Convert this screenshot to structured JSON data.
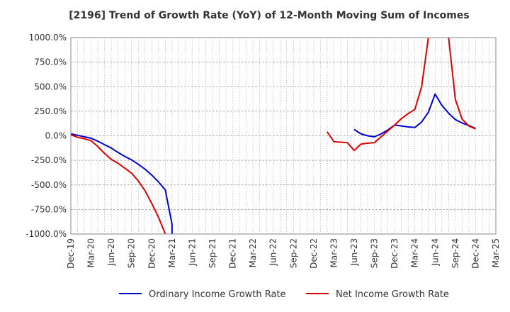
{
  "chart_data": {
    "type": "line",
    "title": "[2196]  Trend of Growth Rate (YoY) of 12-Month Moving Sum of Incomes",
    "xlabel": "",
    "ylabel": "",
    "ylim": [
      -1000,
      1000
    ],
    "y_ticks": [
      1000,
      750,
      500,
      250,
      0,
      -250,
      -500,
      -750,
      -1000
    ],
    "y_tick_labels": [
      "1000.0%",
      "750.0%",
      "500.0%",
      "250.0%",
      "0.0%",
      "-250.0%",
      "-500.0%",
      "-750.0%",
      "-1000.0%"
    ],
    "x_tick_labels": [
      "Dec-19",
      "Mar-20",
      "Jun-20",
      "Sep-20",
      "Dec-20",
      "Mar-21",
      "Jun-21",
      "Sep-21",
      "Dec-21",
      "Mar-22",
      "Jun-22",
      "Sep-22",
      "Dec-22",
      "Mar-23",
      "Jun-23",
      "Sep-23",
      "Dec-23",
      "Mar-24",
      "Jun-24",
      "Sep-24",
      "Dec-24",
      "Mar-25"
    ],
    "grid": true,
    "legend_position": "bottom",
    "series": [
      {
        "name": "Ordinary Income Growth Rate",
        "color": "#0000cc",
        "points": [
          [
            "2019-12",
            20
          ],
          [
            "2020-01",
            5
          ],
          [
            "2020-02",
            -10
          ],
          [
            "2020-03",
            -25
          ],
          [
            "2020-04",
            -55
          ],
          [
            "2020-05",
            -90
          ],
          [
            "2020-06",
            -125
          ],
          [
            "2020-07",
            -170
          ],
          [
            "2020-08",
            -210
          ],
          [
            "2020-09",
            -245
          ],
          [
            "2020-10",
            -290
          ],
          [
            "2020-11",
            -340
          ],
          [
            "2020-12",
            -400
          ],
          [
            "2021-01",
            -470
          ],
          [
            "2021-02",
            -550
          ],
          [
            "2021-03",
            -900
          ],
          [
            "2021-03",
            -1000
          ],
          null,
          [
            "2023-06",
            65
          ],
          [
            "2023-07",
            20
          ],
          [
            "2023-08",
            0
          ],
          [
            "2023-09",
            -10
          ],
          [
            "2023-10",
            20
          ],
          [
            "2023-11",
            60
          ],
          [
            "2023-12",
            110
          ],
          [
            "2024-01",
            100
          ],
          [
            "2024-02",
            90
          ],
          [
            "2024-03",
            85
          ],
          [
            "2024-04",
            140
          ],
          [
            "2024-05",
            240
          ],
          [
            "2024-06",
            425
          ],
          [
            "2024-07",
            310
          ],
          [
            "2024-08",
            230
          ],
          [
            "2024-09",
            165
          ],
          [
            "2024-10",
            130
          ],
          [
            "2024-11",
            105
          ],
          [
            "2024-12",
            75
          ]
        ]
      },
      {
        "name": "Net Income Growth Rate",
        "color": "#dd0000",
        "points": [
          [
            "2019-12",
            10
          ],
          [
            "2020-01",
            -15
          ],
          [
            "2020-02",
            -30
          ],
          [
            "2020-03",
            -50
          ],
          [
            "2020-04",
            -110
          ],
          [
            "2020-05",
            -180
          ],
          [
            "2020-06",
            -240
          ],
          [
            "2020-07",
            -280
          ],
          [
            "2020-08",
            -330
          ],
          [
            "2020-09",
            -380
          ],
          [
            "2020-10",
            -460
          ],
          [
            "2020-11",
            -560
          ],
          [
            "2020-12",
            -690
          ],
          [
            "2021-01",
            -830
          ],
          [
            "2021-02",
            -1000
          ],
          null,
          [
            "2023-02",
            40
          ],
          [
            "2023-03",
            -60
          ],
          [
            "2023-04",
            -65
          ],
          [
            "2023-05",
            -70
          ],
          [
            "2023-06",
            -150
          ],
          [
            "2023-07",
            -85
          ],
          [
            "2023-08",
            -75
          ],
          [
            "2023-09",
            -70
          ],
          [
            "2023-10",
            -10
          ],
          [
            "2023-11",
            50
          ],
          [
            "2023-12",
            110
          ],
          [
            "2024-01",
            175
          ],
          [
            "2024-02",
            225
          ],
          [
            "2024-03",
            270
          ],
          [
            "2024-04",
            500
          ],
          [
            "2024-05",
            1000
          ],
          null,
          [
            "2024-08",
            1000
          ],
          [
            "2024-09",
            370
          ],
          [
            "2024-10",
            170
          ],
          [
            "2024-11",
            100
          ],
          [
            "2024-12",
            70
          ]
        ]
      }
    ]
  }
}
